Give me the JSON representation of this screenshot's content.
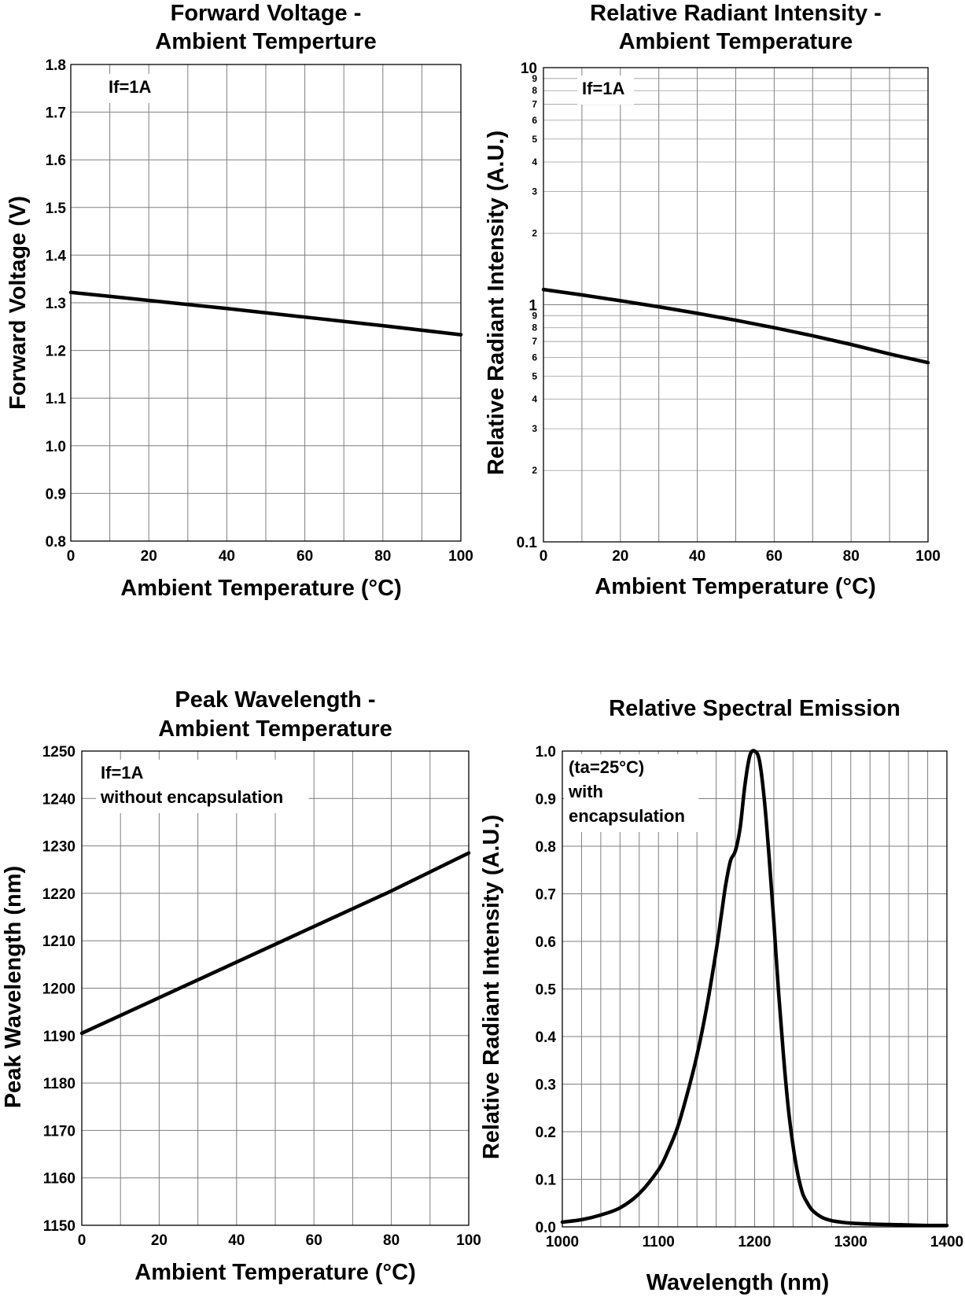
{
  "chart_data": [
    {
      "type": "line",
      "title": [
        "Forward Voltage -",
        "Ambient Temperture"
      ],
      "xlabel": "Ambient Temperature (°C)",
      "ylabel": "Forward Voltage (V)",
      "xlim": [
        0,
        100
      ],
      "ylim": [
        0.8,
        1.8
      ],
      "yscale": "linear",
      "grid": true,
      "xticks": [
        0,
        20,
        40,
        60,
        80,
        100
      ],
      "xtick_labels": [
        "0",
        "20",
        "40",
        "60",
        "80",
        "100"
      ],
      "yticks": [
        0.8,
        0.9,
        1.0,
        1.1,
        1.2,
        1.3,
        1.4,
        1.5,
        1.6,
        1.7,
        1.8
      ],
      "ytick_labels": [
        "0.8",
        "0.9",
        "1.0",
        "1.1",
        "1.2",
        "1.3",
        "1.4",
        "1.5",
        "1.6",
        "1.7",
        "1.8"
      ],
      "annotations": [
        "If=1A"
      ],
      "series": [
        {
          "x": [
            0,
            20,
            40,
            60,
            80,
            100
          ],
          "y": [
            1.322,
            1.305,
            1.288,
            1.27,
            1.252,
            1.233
          ]
        }
      ]
    },
    {
      "type": "line",
      "title": [
        "Relative Radiant Intensity -",
        "Ambient Temperature"
      ],
      "xlabel": "Ambient Temperature (°C)",
      "ylabel": "Relative Radiant Intensity (A.U.)",
      "xlim": [
        0,
        100
      ],
      "ylim": [
        0.1,
        10
      ],
      "yscale": "log",
      "grid": true,
      "xticks": [
        0,
        20,
        40,
        60,
        80,
        100
      ],
      "xtick_labels": [
        "0",
        "20",
        "40",
        "60",
        "80",
        "100"
      ],
      "yticks": [
        0.1,
        1,
        10
      ],
      "ytick_labels": [
        "0.1",
        "1",
        "10"
      ],
      "yminor_ticks": [
        0.2,
        0.3,
        0.4,
        0.5,
        0.6,
        0.7,
        0.8,
        0.9,
        2,
        3,
        4,
        5,
        6,
        7,
        8,
        9
      ],
      "yminor_labels": [
        "2",
        "3",
        "4",
        "5",
        "6",
        "7",
        "8",
        "9",
        "2",
        "3",
        "4",
        "5",
        "6",
        "7",
        "8",
        "9"
      ],
      "annotations": [
        "If=1A"
      ],
      "series": [
        {
          "x": [
            0,
            10,
            20,
            30,
            40,
            50,
            60,
            70,
            80,
            90,
            100
          ],
          "y": [
            1.16,
            1.1,
            1.04,
            0.98,
            0.92,
            0.86,
            0.8,
            0.74,
            0.68,
            0.62,
            0.57
          ]
        }
      ]
    },
    {
      "type": "line",
      "title": [
        "Peak Wavelength -",
        "Ambient Temperature"
      ],
      "xlabel": "Ambient Temperature (°C)",
      "ylabel": "Peak Wavelength (nm)",
      "xlim": [
        0,
        100
      ],
      "ylim": [
        1150,
        1250
      ],
      "yscale": "linear",
      "grid": true,
      "xticks": [
        0,
        20,
        40,
        60,
        80,
        100
      ],
      "xtick_labels": [
        "0",
        "20",
        "40",
        "60",
        "80",
        "100"
      ],
      "yticks": [
        1150,
        1160,
        1170,
        1180,
        1190,
        1200,
        1210,
        1220,
        1230,
        1240,
        1250
      ],
      "ytick_labels": [
        "1150",
        "1160",
        "1170",
        "1180",
        "1190",
        "1200",
        "1210",
        "1220",
        "1230",
        "1240",
        "1250"
      ],
      "annotations": [
        "If=1A",
        "without encapsulation"
      ],
      "series": [
        {
          "x": [
            0,
            20,
            40,
            60,
            80,
            100
          ],
          "y": [
            1190.5,
            1198.0,
            1205.5,
            1213.0,
            1220.5,
            1228.5
          ]
        }
      ]
    },
    {
      "type": "line",
      "title": [
        "Relative Spectral Emission"
      ],
      "xlabel": "Wavelength (nm)",
      "ylabel": "Relative Radiant Intensity (A.U.)",
      "xlim": [
        1000,
        1400
      ],
      "ylim": [
        0,
        1.0
      ],
      "yscale": "linear",
      "grid": true,
      "xticks": [
        1000,
        1100,
        1200,
        1300,
        1400
      ],
      "xtick_labels": [
        "1000",
        "1100",
        "1200",
        "1300",
        "1400"
      ],
      "xminor_step": 20,
      "yticks": [
        0,
        0.1,
        0.2,
        0.3,
        0.4,
        0.5,
        0.6,
        0.7,
        0.8,
        0.9,
        1.0
      ],
      "ytick_labels": [
        "0.0",
        "0.1",
        "0.2",
        "0.3",
        "0.4",
        "0.5",
        "0.6",
        "0.7",
        "0.8",
        "0.9",
        "1.0"
      ],
      "annotations": [
        "(ta=25°C)",
        "with",
        "encapsulation"
      ],
      "series": [
        {
          "x": [
            1000,
            1020,
            1040,
            1060,
            1080,
            1100,
            1110,
            1120,
            1130,
            1140,
            1150,
            1160,
            1165,
            1170,
            1175,
            1180,
            1185,
            1190,
            1195,
            1200,
            1205,
            1210,
            1215,
            1220,
            1225,
            1230,
            1235,
            1240,
            1245,
            1250,
            1255,
            1260,
            1270,
            1280,
            1290,
            1300,
            1320,
            1340,
            1360,
            1380,
            1400
          ],
          "y": [
            0.01,
            0.015,
            0.025,
            0.04,
            0.07,
            0.12,
            0.16,
            0.21,
            0.28,
            0.36,
            0.46,
            0.58,
            0.65,
            0.72,
            0.77,
            0.79,
            0.84,
            0.93,
            0.99,
            1.0,
            0.98,
            0.9,
            0.78,
            0.64,
            0.49,
            0.36,
            0.25,
            0.17,
            0.11,
            0.07,
            0.05,
            0.035,
            0.02,
            0.013,
            0.01,
            0.008,
            0.006,
            0.005,
            0.004,
            0.003,
            0.003
          ]
        }
      ]
    }
  ]
}
